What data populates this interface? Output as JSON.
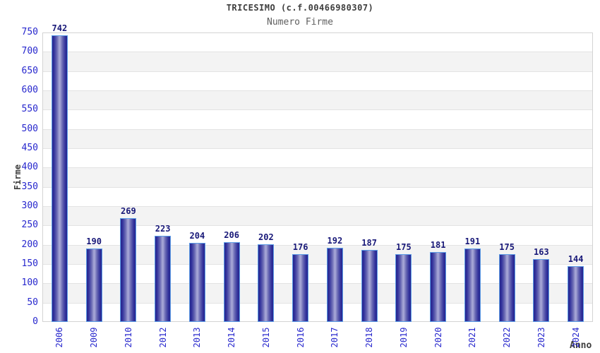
{
  "chart_data": {
    "type": "bar",
    "title": "TRICESIMO (c.f.00466980307)",
    "subtitle": "Numero Firme",
    "xlabel": "Anno",
    "ylabel": "Firme",
    "categories": [
      "2006",
      "2009",
      "2010",
      "2012",
      "2013",
      "2014",
      "2015",
      "2016",
      "2017",
      "2018",
      "2019",
      "2020",
      "2021",
      "2022",
      "2023",
      "2024"
    ],
    "values": [
      742,
      190,
      269,
      223,
      204,
      206,
      202,
      176,
      192,
      187,
      175,
      181,
      191,
      175,
      163,
      144
    ],
    "ylim": [
      0,
      750
    ],
    "ytick_step": 50,
    "grid": "horizontal-bands-alternating",
    "legend": "none",
    "colors": {
      "axis_label_blue": "#2727cd",
      "value_label_navy": "#181878",
      "title_gray": "#3d3d3d",
      "subtitle_gray": "#5f5f5f",
      "bar_dark": "#26268e",
      "bar_mid": "#6a6ab4",
      "bar_light": "#a6a6d6",
      "bar_border": "#5c9ce6",
      "band_gray": "#f3f3f3",
      "band_white": "#ffffff",
      "gridline": "#e3e3e3",
      "plot_border": "#d3d3d3"
    }
  }
}
